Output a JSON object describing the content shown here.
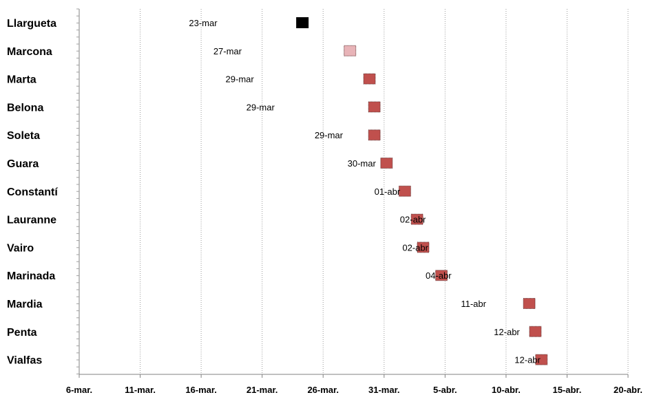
{
  "chart_data": {
    "type": "scatter",
    "title": "",
    "xlabel": "",
    "ylabel": "",
    "grid": true,
    "x_ticks": [
      "6-mar.",
      "11-mar.",
      "16-mar.",
      "21-mar.",
      "26-mar.",
      "31-mar.",
      "5-abr.",
      "10-abr.",
      "15-abr.",
      "20-abr."
    ],
    "xlim_days": [
      6,
      51
    ],
    "categories": [
      "Llargueta",
      "Marcona",
      "Marta",
      "Belona",
      "Soleta",
      "Guara",
      "Constantí",
      "Lauranne",
      "Vairo",
      "Marinada",
      "Mardia",
      "Penta",
      "Vialfas"
    ],
    "points": [
      {
        "category": "Llargueta",
        "date": "23-mar",
        "day": 24.3,
        "label_day": 15.0,
        "color": "#000000"
      },
      {
        "category": "Marcona",
        "date": "27-mar",
        "day": 28.2,
        "label_day": 17.0,
        "color": "#e8b4b8"
      },
      {
        "category": "Marta",
        "date": "29-mar",
        "day": 29.8,
        "label_day": 18.0,
        "color": "#c0504d"
      },
      {
        "category": "Belona",
        "date": "29-mar",
        "day": 30.2,
        "label_day": 19.7,
        "color": "#c0504d"
      },
      {
        "category": "Soleta",
        "date": "29-mar",
        "day": 30.2,
        "label_day": 25.3,
        "color": "#c0504d"
      },
      {
        "category": "Guara",
        "date": "30-mar",
        "day": 31.2,
        "label_day": 28.0,
        "color": "#c0504d"
      },
      {
        "category": "Constantí",
        "date": "01-abr",
        "day": 32.7,
        "label_day": 30.2,
        "color": "#c0504d"
      },
      {
        "category": "Lauranne",
        "date": "02-abr",
        "day": 33.7,
        "label_day": 32.3,
        "color": "#c0504d"
      },
      {
        "category": "Vairo",
        "date": "02-abr",
        "day": 34.2,
        "label_day": 32.5,
        "color": "#c0504d"
      },
      {
        "category": "Marinada",
        "date": "04-abr",
        "day": 35.7,
        "label_day": 34.4,
        "color": "#c0504d"
      },
      {
        "category": "Mardia",
        "date": "11-abr",
        "day": 42.9,
        "label_day": 37.3,
        "color": "#c0504d"
      },
      {
        "category": "Penta",
        "date": "12-abr",
        "day": 43.4,
        "label_day": 40.0,
        "color": "#c0504d"
      },
      {
        "category": "Vialfas",
        "date": "12-abr",
        "day": 43.9,
        "label_day": 41.7,
        "color": "#c0504d"
      }
    ]
  }
}
